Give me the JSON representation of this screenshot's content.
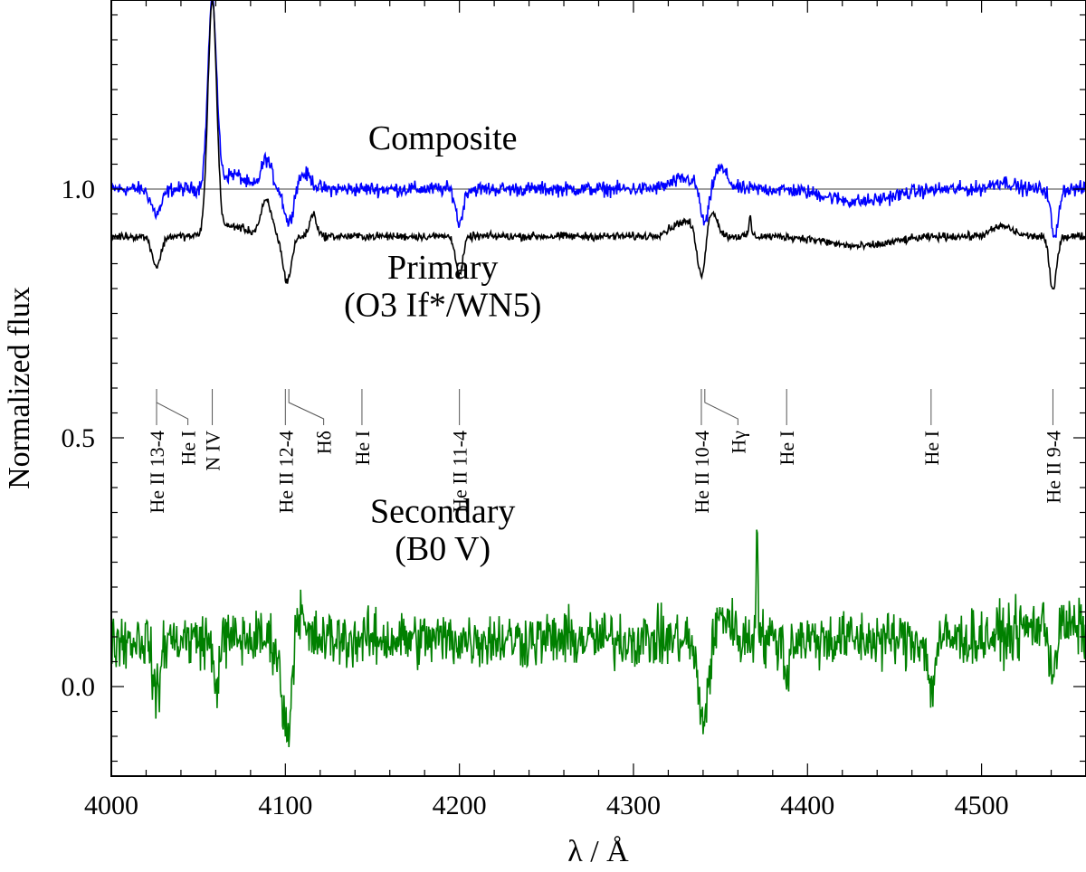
{
  "chart_data": {
    "type": "line",
    "title": "",
    "xlabel": "λ / Å",
    "ylabel": "Normalized flux",
    "xlim": [
      4000,
      4560
    ],
    "ylim": [
      -0.18,
      1.38
    ],
    "x_ticks": [
      4000,
      4100,
      4200,
      4300,
      4400,
      4500
    ],
    "x_tick_labels": [
      "4000",
      "4100",
      "4200",
      "4300",
      "4400",
      "4500"
    ],
    "y_ticks": [
      0.0,
      0.5,
      1.0
    ],
    "y_tick_labels": [
      "0.0",
      "0.5",
      "1.0"
    ],
    "reference_line": 1.0,
    "series": [
      {
        "name": "Composite",
        "label": "Composite",
        "color": "#0000ff",
        "baseline": 1.0,
        "noise": 0.009,
        "x_label": 4180,
        "y_label": 1.08,
        "features": [
          {
            "c": 4026,
            "a": -0.05,
            "w": 3
          },
          {
            "c": 4058,
            "a": 0.38,
            "w": 2.5
          },
          {
            "c": 4070,
            "a": 0.03,
            "w": 6
          },
          {
            "c": 4089,
            "a": 0.06,
            "w": 3
          },
          {
            "c": 4102,
            "a": -0.07,
            "w": 2.5
          },
          {
            "c": 4111,
            "a": 0.03,
            "w": 4
          },
          {
            "c": 4200,
            "a": -0.07,
            "w": 2
          },
          {
            "c": 4330,
            "a": 0.02,
            "w": 8
          },
          {
            "c": 4341,
            "a": -0.08,
            "w": 2.5
          },
          {
            "c": 4350,
            "a": 0.04,
            "w": 4
          },
          {
            "c": 4430,
            "a": -0.025,
            "w": 18
          },
          {
            "c": 4512,
            "a": 0.015,
            "w": 6
          },
          {
            "c": 4542,
            "a": -0.1,
            "w": 2
          }
        ]
      },
      {
        "name": "Primary (O3 If*/WN5)",
        "label": "Primary",
        "label2": "(O3 If*/WN5)",
        "color": "#000000",
        "baseline": 0.905,
        "noise": 0.005,
        "x_label": 4180,
        "y_label": 0.82,
        "y_label2": 0.745,
        "features": [
          {
            "c": 4026,
            "a": -0.06,
            "w": 2.5
          },
          {
            "c": 4058,
            "a": 0.47,
            "w": 2.5
          },
          {
            "c": 4070,
            "a": 0.02,
            "w": 8
          },
          {
            "c": 4089,
            "a": 0.07,
            "w": 3
          },
          {
            "c": 4101,
            "a": -0.09,
            "w": 2.5
          },
          {
            "c": 4116,
            "a": 0.045,
            "w": 2
          },
          {
            "c": 4200,
            "a": -0.08,
            "w": 2
          },
          {
            "c": 4330,
            "a": 0.03,
            "w": 8
          },
          {
            "c": 4339,
            "a": -0.1,
            "w": 2.5
          },
          {
            "c": 4345,
            "a": 0.05,
            "w": 3
          },
          {
            "c": 4367,
            "a": 0.04,
            "w": 0.7
          },
          {
            "c": 4430,
            "a": -0.02,
            "w": 18
          },
          {
            "c": 4512,
            "a": 0.02,
            "w": 6
          },
          {
            "c": 4541,
            "a": -0.11,
            "w": 2
          }
        ]
      },
      {
        "name": "Secondary (B0 V)",
        "label": "Secondary",
        "label2": "(B0 V)",
        "color": "#008000",
        "baseline": 0.095,
        "noise": 0.035,
        "x_label": 4180,
        "y_label": 0.33,
        "y_label2": 0.255,
        "features": [
          {
            "c": 4026,
            "a": -0.12,
            "w": 2
          },
          {
            "c": 4060,
            "a": -0.1,
            "w": 1.5
          },
          {
            "c": 4101,
            "a": -0.19,
            "w": 3
          },
          {
            "c": 4107,
            "a": 0.08,
            "w": 2.5
          },
          {
            "c": 4340,
            "a": -0.16,
            "w": 3
          },
          {
            "c": 4352,
            "a": 0.05,
            "w": 4
          },
          {
            "c": 4371,
            "a": 0.24,
            "w": 0.6
          },
          {
            "c": 4388,
            "a": -0.08,
            "w": 1.2
          },
          {
            "c": 4471,
            "a": -0.1,
            "w": 2
          },
          {
            "c": 4541,
            "a": -0.09,
            "w": 2
          },
          {
            "c": 4540,
            "a": 0.03,
            "w": 18
          }
        ]
      }
    ],
    "line_ids": [
      {
        "label": "He II 13-4",
        "x": 4026,
        "x_text": 4026
      },
      {
        "label": "He I",
        "x": 4026,
        "x_text": 4044
      },
      {
        "label": "N IV",
        "x": 4058,
        "x_text": 4058
      },
      {
        "label": "He II 12-4",
        "x": 4100,
        "x_text": 4100
      },
      {
        "label": "Hδ",
        "x": 4102,
        "x_text": 4122
      },
      {
        "label": "He I",
        "x": 4144,
        "x_text": 4144
      },
      {
        "label": "He II 11-4",
        "x": 4200,
        "x_text": 4200
      },
      {
        "label": "He II 10-4",
        "x": 4339,
        "x_text": 4339
      },
      {
        "label": "Hγ",
        "x": 4341,
        "x_text": 4360
      },
      {
        "label": "He I",
        "x": 4388,
        "x_text": 4388
      },
      {
        "label": "He I",
        "x": 4471,
        "x_text": 4471
      },
      {
        "label": "He II 9-4",
        "x": 4541,
        "x_text": 4541
      }
    ]
  }
}
